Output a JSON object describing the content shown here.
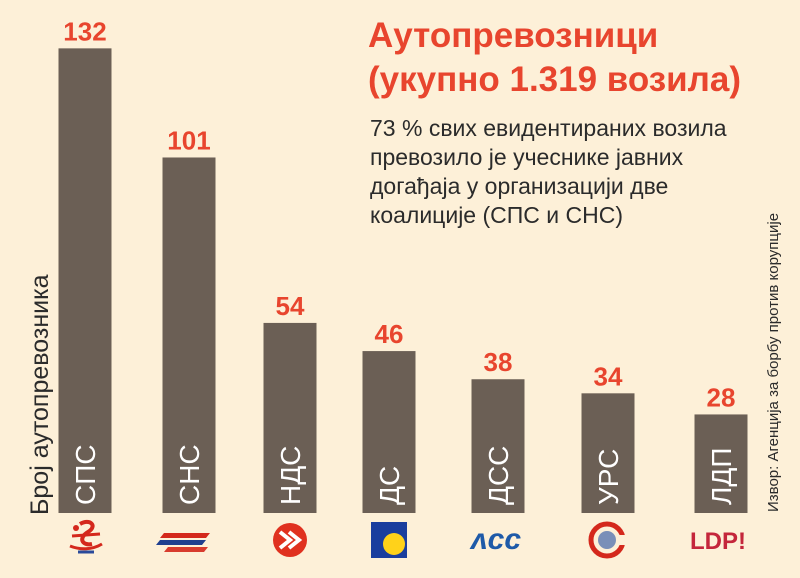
{
  "title_line1": "Аутопревозници",
  "title_line2": "(укупно 1.319 возила)",
  "subtitle_lines": [
    "73 % свих евидентираних возила",
    "превозило је учеснике јавних",
    "догађаја у организацији две",
    "коалиције (СПС и СНС)"
  ],
  "source": "Извор: Агенција за борбу против корупције",
  "colors": {
    "background": "#fdf0d8",
    "bar": "#6b5f55",
    "value_label": "#e8452e",
    "category_label": "#ffffff",
    "title": "#e8452e"
  },
  "chart_data": {
    "type": "bar",
    "ylabel": "Број аутопревозника",
    "categories": [
      "СПС",
      "СНС",
      "НДС",
      "ДС",
      "ДСС",
      "УРС",
      "ЛДП"
    ],
    "values": [
      132,
      101,
      54,
      46,
      38,
      34,
      28
    ],
    "logos": [
      "sps-logo-icon",
      "sns-logo-icon",
      "nds-logo-icon",
      "ds-logo-icon",
      "dss-logo-icon",
      "urs-logo-icon",
      "ldp-logo-icon"
    ],
    "ldp_logo_text": "LDP!"
  }
}
